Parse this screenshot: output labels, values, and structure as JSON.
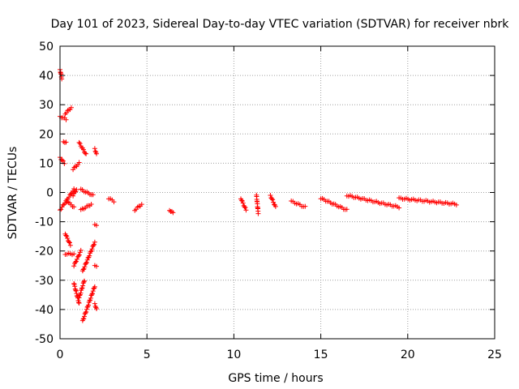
{
  "chart_data": {
    "type": "scatter",
    "title": "Day 101 of 2023, Sidereal Day-to-day VTEC variation (SDTVAR) for receiver nbrk",
    "xlabel": "GPS time / hours",
    "ylabel": "SDTVAR / TECUs",
    "xlim": [
      0,
      25
    ],
    "ylim": [
      -50,
      50
    ],
    "xticks": [
      0,
      5,
      10,
      15,
      20,
      25
    ],
    "yticks": [
      -50,
      -40,
      -30,
      -20,
      -10,
      0,
      10,
      20,
      30,
      40,
      50
    ],
    "xtick_labels": [
      "0",
      "5",
      "10",
      "15",
      "20",
      "25"
    ],
    "ytick_labels": [
      "-50",
      "-40",
      "-30",
      "-20",
      "-10",
      "0",
      "10",
      "20",
      "30",
      "40",
      "50"
    ],
    "grid": true,
    "marker": "+",
    "color": "#ff0000",
    "segments": [
      {
        "x": [
          0.0,
          0.1
        ],
        "y": [
          42,
          39
        ]
      },
      {
        "x": [
          0.0,
          0.35
        ],
        "y": [
          26,
          25
        ]
      },
      {
        "x": [
          0.3,
          0.65
        ],
        "y": [
          27,
          29
        ]
      },
      {
        "x": [
          0.0,
          0.25
        ],
        "y": [
          12,
          10
        ]
      },
      {
        "x": [
          0.2,
          0.35
        ],
        "y": [
          17.5,
          17
        ]
      },
      {
        "x": [
          1.1,
          1.5
        ],
        "y": [
          17,
          13
        ]
      },
      {
        "x": [
          2.0,
          2.1
        ],
        "y": [
          15,
          13
        ]
      },
      {
        "x": [
          0.75,
          1.1
        ],
        "y": [
          8,
          10
        ]
      },
      {
        "x": [
          0.0,
          0.8
        ],
        "y": [
          -6,
          1
        ]
      },
      {
        "x": [
          0.75,
          0.95
        ],
        "y": [
          -1,
          1
        ]
      },
      {
        "x": [
          1.2,
          1.9
        ],
        "y": [
          1,
          -1
        ]
      },
      {
        "x": [
          1.2,
          1.8
        ],
        "y": [
          -6,
          -4
        ]
      },
      {
        "x": [
          0.4,
          0.8
        ],
        "y": [
          -3,
          -5
        ]
      },
      {
        "x": [
          0.3,
          0.6
        ],
        "y": [
          -14,
          -18
        ]
      },
      {
        "x": [
          0.3,
          0.8
        ],
        "y": [
          -21,
          -21
        ]
      },
      {
        "x": [
          0.8,
          1.2
        ],
        "y": [
          -25,
          -20
        ]
      },
      {
        "x": [
          1.3,
          2.0
        ],
        "y": [
          -27,
          -17
        ]
      },
      {
        "x": [
          1.1,
          1.4
        ],
        "y": [
          -36,
          -30
        ]
      },
      {
        "x": [
          1.3,
          2.0
        ],
        "y": [
          -44,
          -32
        ]
      },
      {
        "x": [
          0.8,
          1.1
        ],
        "y": [
          -31,
          -38
        ]
      },
      {
        "x": [
          2.0,
          2.1
        ],
        "y": [
          -38,
          -40
        ]
      },
      {
        "x": [
          2.0,
          2.1
        ],
        "y": [
          -11,
          -11
        ]
      },
      {
        "x": [
          2.0,
          2.1
        ],
        "y": [
          -25,
          -25
        ]
      },
      {
        "x": [
          2.8,
          3.1
        ],
        "y": [
          -2,
          -3
        ]
      },
      {
        "x": [
          4.3,
          4.7
        ],
        "y": [
          -6,
          -4
        ]
      },
      {
        "x": [
          6.3,
          6.5
        ],
        "y": [
          -6,
          -7
        ]
      },
      {
        "x": [
          10.4,
          10.7
        ],
        "y": [
          -2,
          -6
        ]
      },
      {
        "x": [
          11.3,
          11.4
        ],
        "y": [
          -1,
          -7
        ]
      },
      {
        "x": [
          12.1,
          12.4
        ],
        "y": [
          -1,
          -5
        ]
      },
      {
        "x": [
          13.3,
          14.1
        ],
        "y": [
          -3,
          -5
        ]
      },
      {
        "x": [
          15.0,
          16.5
        ],
        "y": [
          -2,
          -6
        ]
      },
      {
        "x": [
          16.5,
          19.5
        ],
        "y": [
          -1,
          -5
        ]
      },
      {
        "x": [
          19.5,
          22.8
        ],
        "y": [
          -2,
          -4
        ]
      }
    ]
  }
}
